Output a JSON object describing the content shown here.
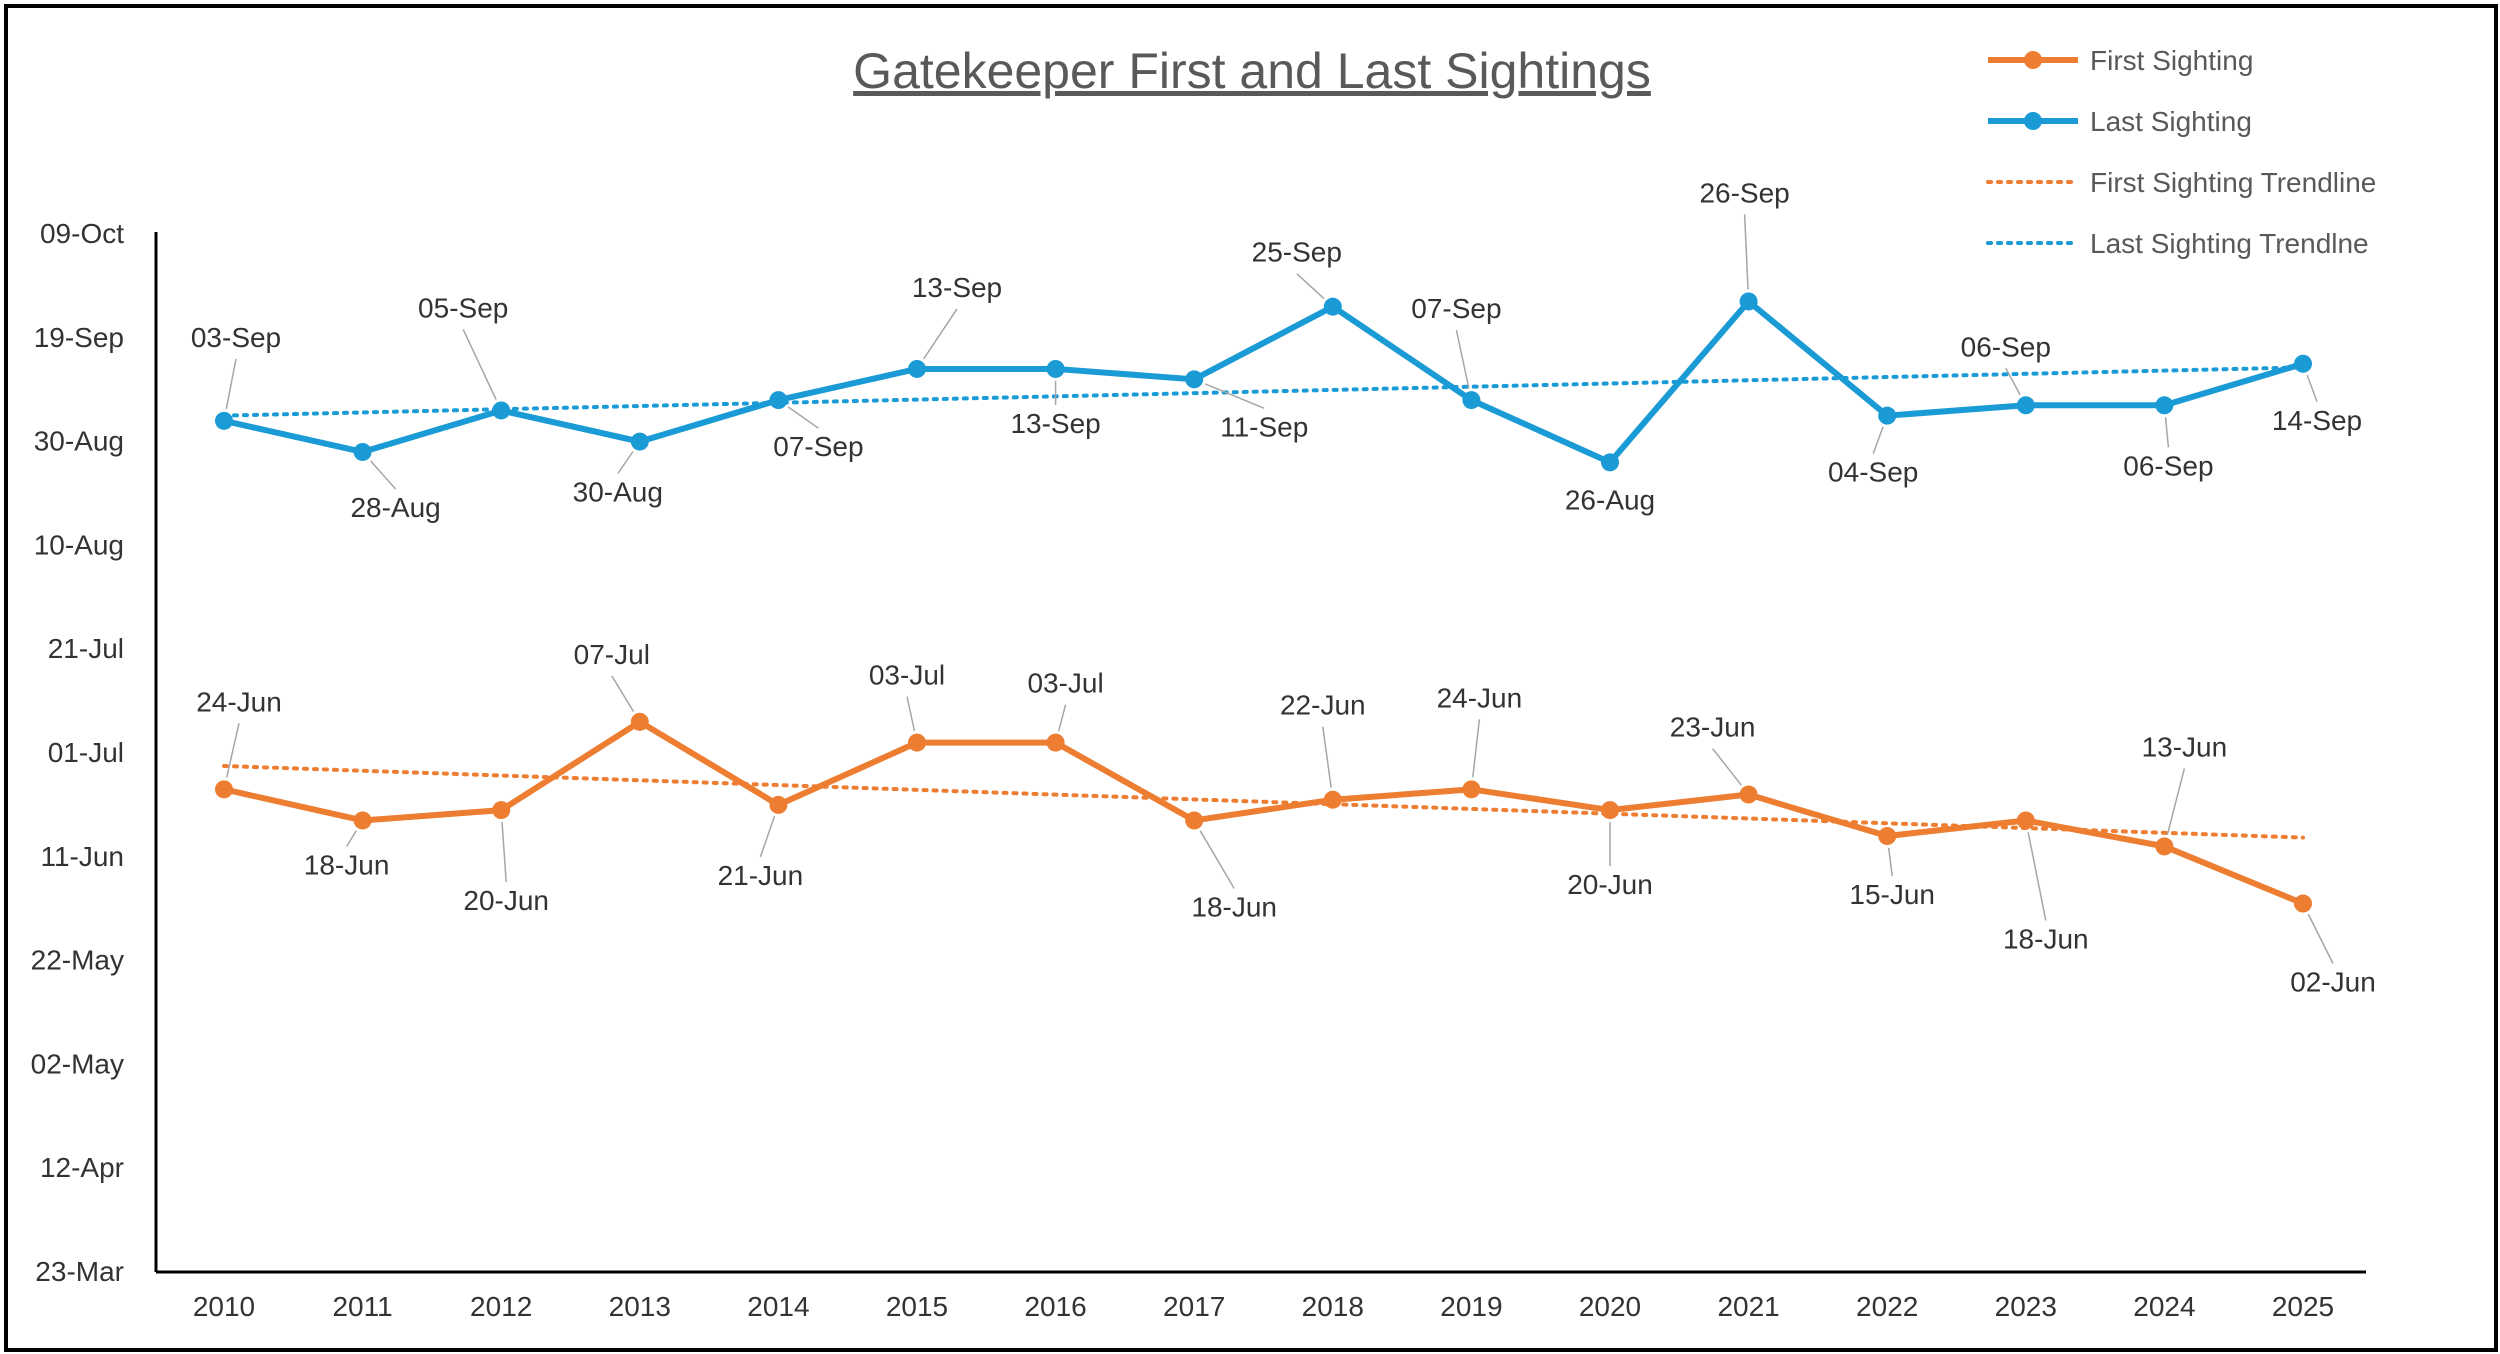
{
  "chart_data": {
    "type": "line",
    "title": "Gatekeeper First and Last Sightings",
    "xlabel": "",
    "ylabel": "",
    "x": [
      2010,
      2011,
      2012,
      2013,
      2014,
      2015,
      2016,
      2017,
      2018,
      2019,
      2020,
      2021,
      2022,
      2023,
      2024,
      2025
    ],
    "x_tick_labels": [
      "2010",
      "2011",
      "2012",
      "2013",
      "2014",
      "2015",
      "2016",
      "2017",
      "2018",
      "2019",
      "2020",
      "2021",
      "2022",
      "2023",
      "2024",
      "2025"
    ],
    "y_unit": "day of year",
    "ylim": [
      82,
      282
    ],
    "y_ticks": [
      82,
      102,
      122,
      142,
      162,
      182,
      202,
      222,
      242,
      262,
      282
    ],
    "y_tick_labels": [
      "23-Mar",
      "12-Apr",
      "02-May",
      "22-May",
      "11-Jun",
      "01-Jul",
      "21-Jul",
      "10-Aug",
      "30-Aug",
      "19-Sep",
      "09-Oct"
    ],
    "series": [
      {
        "name": "First Sighting",
        "color": "#ED7D31",
        "values": [
          175,
          169,
          171,
          188,
          172,
          184,
          184,
          169,
          173,
          175,
          171,
          174,
          166,
          169,
          164,
          153
        ],
        "labels": [
          "24-Jun",
          "18-Jun",
          "20-Jun",
          "07-Jul",
          "21-Jun",
          "03-Jul",
          "03-Jul",
          "18-Jun",
          "22-Jun",
          "24-Jun",
          "20-Jun",
          "23-Jun",
          "15-Jun",
          "18-Jun",
          "13-Jun",
          "02-Jun"
        ]
      },
      {
        "name": "Last Sighting",
        "color": "#1B9BD5",
        "values": [
          246,
          240,
          248,
          242,
          250,
          256,
          256,
          254,
          268,
          250,
          238,
          269,
          247,
          249,
          249,
          257
        ],
        "labels": [
          "03-Sep",
          "28-Aug",
          "05-Sep",
          "30-Aug",
          "07-Sep",
          "13-Sep",
          "13-Sep",
          "11-Sep",
          "25-Sep",
          "07-Sep",
          "26-Aug",
          "26-Sep",
          "04-Sep",
          "06-Sep",
          "06-Sep",
          "14-Sep"
        ]
      }
    ],
    "trendlines": [
      {
        "name": "First Sighting Trendline",
        "color": "#ED7D31",
        "start_value": 179.5,
        "end_value": 165.7
      },
      {
        "name": "Last Sighting Trendline",
        "color": "#1B9BD5",
        "start_value": 247,
        "end_value": 256.3
      }
    ],
    "legend": {
      "position": "top-right",
      "entries": [
        "First Sighting",
        "Last Sighting",
        "First Sighting Trendline",
        "Last Sighting Trendlne"
      ]
    },
    "grid": false
  }
}
